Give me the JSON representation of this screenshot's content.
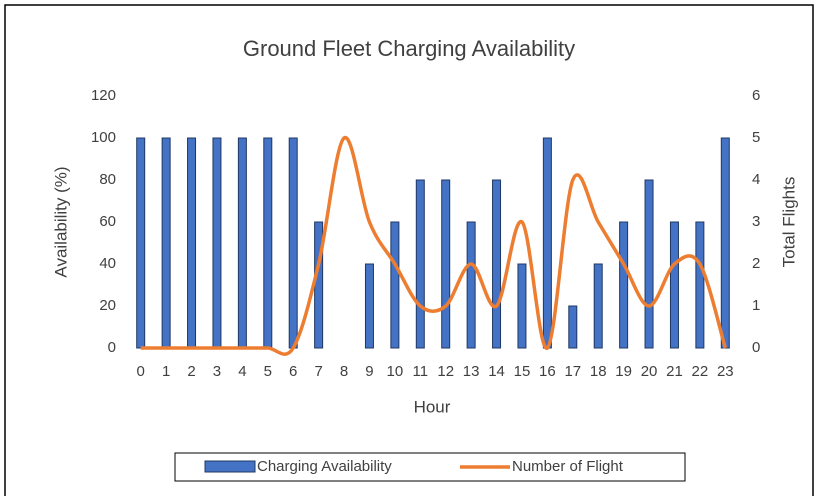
{
  "chart_data": {
    "type": "bar_line",
    "title": "Ground Fleet Charging Availability",
    "x_label": "Hour",
    "y_label": "Availability (%)",
    "y2_label": "Total Flights",
    "categories": [
      "0",
      "1",
      "2",
      "3",
      "4",
      "5",
      "6",
      "7",
      "8",
      "9",
      "10",
      "11",
      "12",
      "13",
      "14",
      "15",
      "16",
      "17",
      "18",
      "19",
      "20",
      "21",
      "22",
      "23"
    ],
    "series": [
      {
        "name": "Charging Availability",
        "type": "bar",
        "color": "#4472c4",
        "values": [
          100,
          100,
          100,
          100,
          100,
          100,
          100,
          60,
          0,
          40,
          60,
          80,
          80,
          60,
          80,
          40,
          100,
          20,
          40,
          60,
          80,
          60,
          60,
          100
        ]
      },
      {
        "name": "Number of Flight",
        "type": "line",
        "axis": "y2",
        "color": "#ed7d31",
        "values": [
          0,
          0,
          0,
          0,
          0,
          0,
          0,
          2,
          5,
          3,
          2,
          1,
          1,
          2,
          1,
          3,
          0,
          4,
          3,
          2,
          1,
          2,
          2,
          0
        ]
      }
    ],
    "ylim": [
      0,
      120
    ],
    "yticks": [
      0,
      20,
      40,
      60,
      80,
      100,
      120
    ],
    "y2lim": [
      0,
      6
    ],
    "y2ticks": [
      0,
      1,
      2,
      3,
      4,
      5,
      6
    ],
    "legend": "bottom"
  }
}
